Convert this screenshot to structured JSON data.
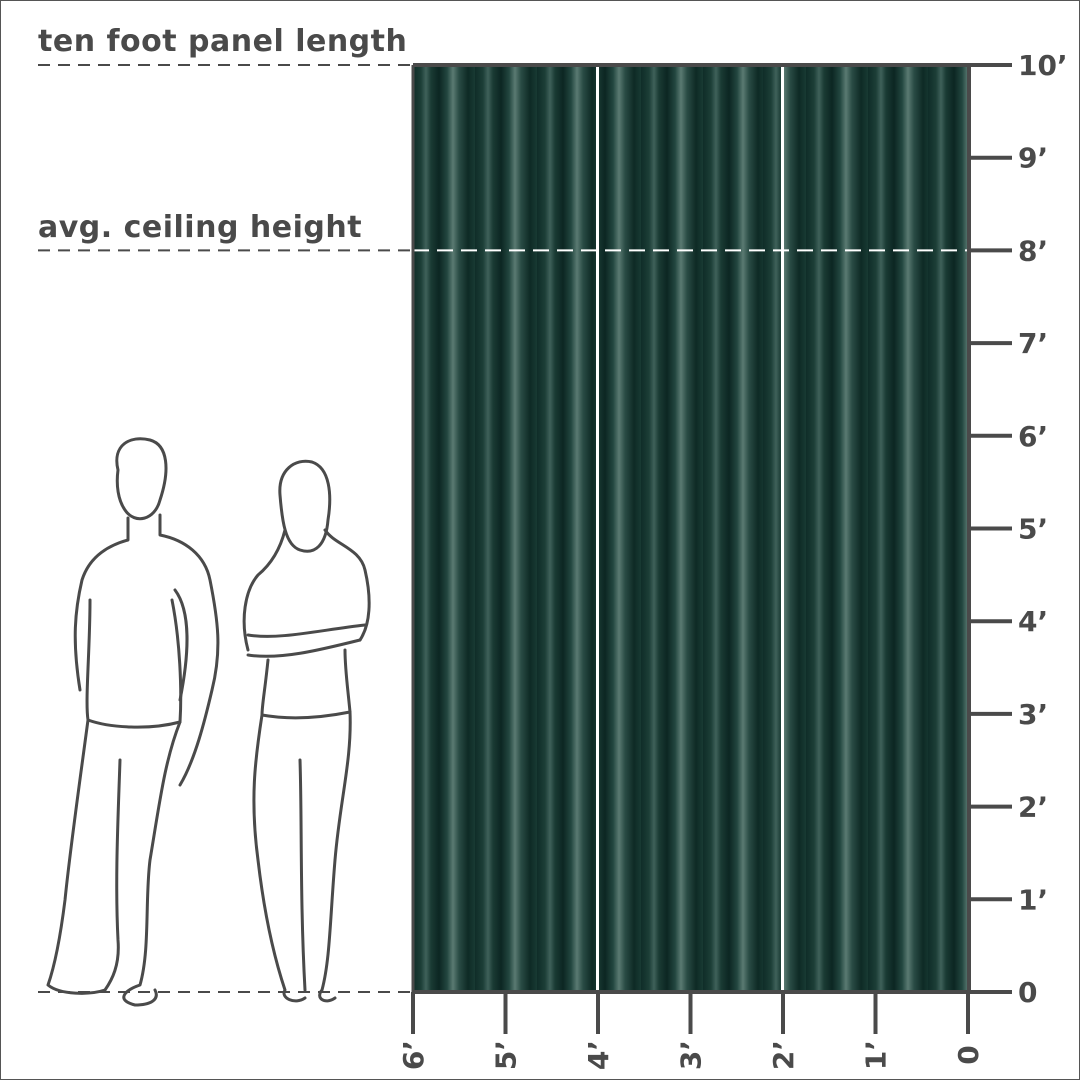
{
  "labels": {
    "panel_length": "ten foot panel length",
    "ceiling_height": "avg. ceiling height"
  },
  "vertical_axis": {
    "unit": "feet",
    "ticks": [
      "0",
      "1’",
      "2’",
      "3’",
      "4’",
      "5’",
      "6’",
      "7’",
      "8’",
      "9’",
      "10’"
    ]
  },
  "horizontal_axis": {
    "unit": "feet",
    "ticks": [
      "6’",
      "5’",
      "4’",
      "3’",
      "2’",
      "1’",
      "0"
    ]
  },
  "curtain": {
    "panels": 3,
    "color": "#1c3b35",
    "length_ft": 10,
    "width_ft": 6
  },
  "reference_lines": {
    "panel_length_ft": 10,
    "ceiling_height_ft": 8
  },
  "colors": {
    "ink": "#4a4a4a",
    "curtain": "#1c3b35"
  }
}
